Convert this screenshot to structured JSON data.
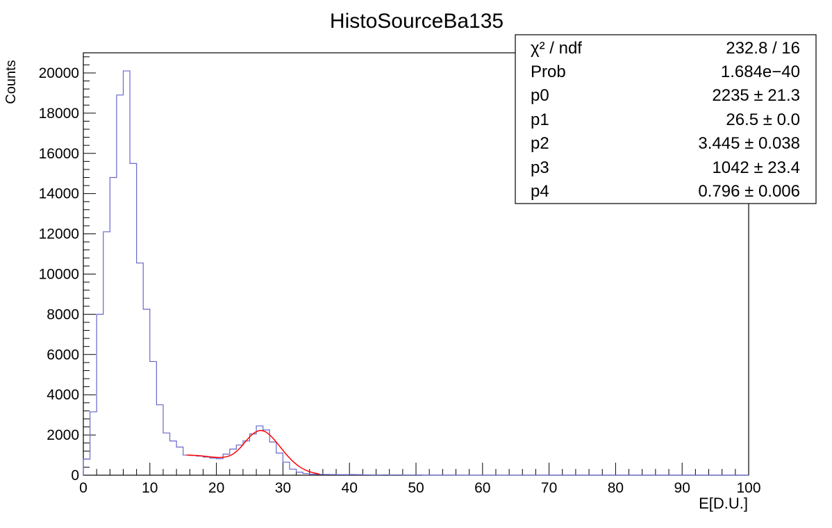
{
  "chart_data": {
    "type": "histogram",
    "title": "HistoSourceBa135",
    "xlabel": "E[D.U.]",
    "ylabel": "Counts",
    "xlim": [
      0,
      100
    ],
    "ylim": [
      0,
      21000
    ],
    "x_ticks": [
      "0",
      "10",
      "20",
      "30",
      "40",
      "50",
      "60",
      "70",
      "80",
      "90",
      "100"
    ],
    "y_ticks": [
      "0",
      "2000",
      "4000",
      "6000",
      "8000",
      "10000",
      "12000",
      "14000",
      "16000",
      "18000",
      "20000"
    ],
    "grid": false,
    "series": [
      {
        "kind": "histogram",
        "color": "#6666cc",
        "bin_width": 1,
        "bin_edges_start": 0,
        "values": [
          800,
          3150,
          8000,
          12100,
          14800,
          18900,
          20100,
          15500,
          10550,
          8250,
          5650,
          3500,
          2100,
          1700,
          1400,
          1000,
          980,
          950,
          900,
          850,
          820,
          1050,
          1300,
          1500,
          1700,
          2050,
          2450,
          2250,
          1650,
          1100,
          650,
          300,
          150,
          80,
          50,
          40,
          35,
          30,
          25,
          25,
          30,
          25,
          20,
          15,
          15,
          20,
          15,
          15,
          10,
          10,
          10,
          5,
          5,
          5,
          5,
          5,
          3,
          3,
          3,
          3,
          2,
          2,
          2,
          2,
          2,
          2,
          2,
          2,
          2,
          2,
          1,
          1,
          1,
          1,
          1,
          1,
          1,
          1,
          1,
          1,
          1,
          1,
          1,
          1,
          1,
          1,
          1,
          1,
          1,
          1,
          1,
          1,
          1,
          1,
          1,
          1,
          1,
          1,
          1,
          1
        ]
      },
      {
        "kind": "fit",
        "color": "#ff0000",
        "x": [
          15.5,
          16.5,
          17.5,
          18.5,
          19.5,
          20.5,
          21.5,
          22.5,
          23.5,
          24.5,
          25.5,
          26.5,
          27.5,
          28.5,
          29.5,
          30.5,
          31.5,
          32.5,
          33.5,
          34.5,
          35.5
        ],
        "values": [
          1002,
          990,
          967,
          934,
          899,
          882,
          917,
          1053,
          1334,
          1719,
          2058,
          2220,
          2134,
          1840,
          1441,
          1036,
          687,
          421,
          238,
          124,
          60
        ]
      }
    ],
    "stats_box": {
      "position": "top-right",
      "rows": [
        {
          "label": "χ² / ndf",
          "value": "232.8 / 16"
        },
        {
          "label": "Prob",
          "value": "1.684e−40"
        },
        {
          "label": "p0",
          "value": "2235 ± 21.3"
        },
        {
          "label": "p1",
          "value": "26.5 ± 0.0"
        },
        {
          "label": "p2",
          "value": "3.445 ± 0.038"
        },
        {
          "label": "p3",
          "value": "1042 ± 23.4"
        },
        {
          "label": "p4",
          "value": "0.796 ± 0.006"
        }
      ]
    }
  }
}
